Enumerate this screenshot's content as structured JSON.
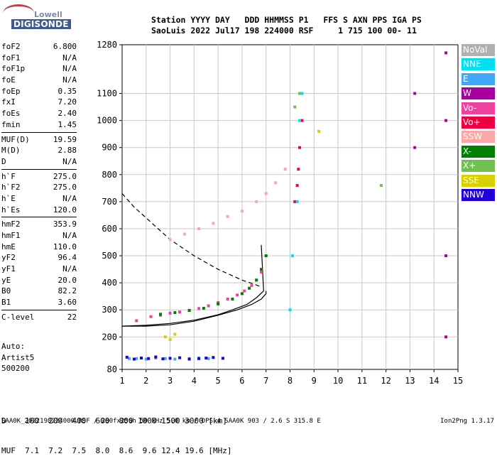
{
  "logo": {
    "line1": "Lowell",
    "line2": "DIGISONDE"
  },
  "header": {
    "line1": "Station YYYY DAY   DDD HHMMSS P1   FFS S AXN PPS IGA PS",
    "line2": "SaoLuis 2022 Jul17 198 224000 RSF     1 715 100 00- 11"
  },
  "params_group1": [
    {
      "name": "foF2",
      "value": "6.800"
    },
    {
      "name": "foF1",
      "value": "N/A"
    },
    {
      "name": "foF1p",
      "value": "N/A"
    },
    {
      "name": "foE",
      "value": "N/A"
    },
    {
      "name": "foEp",
      "value": "0.35"
    },
    {
      "name": "fxI",
      "value": "7.20"
    },
    {
      "name": "foEs",
      "value": "2.40"
    },
    {
      "name": "fmin",
      "value": "1.45"
    }
  ],
  "params_group2": [
    {
      "name": "MUF(D)",
      "value": "19.59"
    },
    {
      "name": "M(D)",
      "value": "2.88"
    },
    {
      "name": "D",
      "value": "N/A"
    }
  ],
  "params_group3": [
    {
      "name": "h`F",
      "value": "275.0"
    },
    {
      "name": "h`F2",
      "value": "275.0"
    },
    {
      "name": "h`E",
      "value": "N/A"
    },
    {
      "name": "h`Es",
      "value": "120.0"
    }
  ],
  "params_group4": [
    {
      "name": "hmF2",
      "value": "353.9"
    },
    {
      "name": "hmF1",
      "value": "N/A"
    },
    {
      "name": "hmE",
      "value": "110.0"
    },
    {
      "name": "yF2",
      "value": "96.4"
    },
    {
      "name": "yF1",
      "value": "N/A"
    },
    {
      "name": "yE",
      "value": "20.0"
    },
    {
      "name": "B0",
      "value": "82.2"
    },
    {
      "name": "B1",
      "value": "3.60"
    }
  ],
  "params_group5": [
    {
      "name": "C-level",
      "value": "22"
    }
  ],
  "auto": {
    "line1": "Auto:",
    "line2": "Artist5",
    "line3": "500200"
  },
  "legend": [
    {
      "label": "NoVal",
      "color": "#b0b0b0"
    },
    {
      "label": "NNE",
      "color": "#00e0f0"
    },
    {
      "label": "E",
      "color": "#40a8f8"
    },
    {
      "label": "W",
      "color": "#a800a0"
    },
    {
      "label": "Vo-",
      "color": "#f040a0"
    },
    {
      "label": "Vo+",
      "color": "#f00040"
    },
    {
      "label": "SSW",
      "color": "#f8a8a8"
    },
    {
      "label": "X-",
      "color": "#008000"
    },
    {
      "label": "X+",
      "color": "#70c050"
    },
    {
      "label": "SSE",
      "color": "#d8d000"
    },
    {
      "label": "NNW",
      "color": "#2000d8"
    }
  ],
  "dmuf": {
    "line1": "D    100  200  400  600  800 1000 1500 3000 [km]",
    "line2": "MUF  7.1  7.2  7.5  8.0  8.6  9.6 12.4 19.6 [MHz]"
  },
  "footer": "SAA0K_2022198224000.RSF / 280fx256h 50 kHz 5.0 km / DPS-4 SAA0K 903 / 2.6 S 315.8 E",
  "version": "Ion2Png 1.3.17",
  "chart_data": {
    "type": "scatter",
    "x_ticks": [
      "1",
      "2",
      "3",
      "4",
      "5",
      "6",
      "7",
      "8",
      "9",
      "10",
      "11",
      "12",
      "13",
      "14",
      "15"
    ],
    "y_ticks": [
      "80",
      "200",
      "300",
      "400",
      "500",
      "600",
      "700",
      "800",
      "900",
      "1000",
      "1100",
      "1280"
    ],
    "xlim": [
      1,
      15
    ],
    "ylim": [
      80,
      1280
    ],
    "grid": true,
    "series": [
      {
        "name": "Vo-",
        "color": "#f040a0",
        "x": [
          1.6,
          2.2,
          2.6,
          3.0,
          3.4,
          3.8,
          4.2,
          4.6,
          5.0,
          5.4,
          5.8,
          6.1,
          6.4,
          6.6,
          6.8
        ],
        "y": [
          260,
          275,
          280,
          288,
          292,
          298,
          305,
          315,
          327,
          340,
          355,
          370,
          390,
          410,
          440
        ]
      },
      {
        "name": "X-",
        "color": "#008000",
        "x": [
          2.6,
          3.2,
          3.8,
          4.4,
          5.0,
          5.6,
          6.0,
          6.3,
          6.6,
          6.8,
          7.0
        ],
        "y": [
          284,
          290,
          298,
          306,
          322,
          340,
          360,
          380,
          410,
          450,
          500
        ]
      },
      {
        "name": "SSW",
        "color": "#f8a8a8",
        "x": [
          3.0,
          3.6,
          4.2,
          4.8,
          5.4,
          6.0,
          6.6,
          7.0,
          7.4,
          7.8
        ],
        "y": [
          560,
          580,
          600,
          620,
          645,
          665,
          700,
          730,
          770,
          820
        ]
      },
      {
        "name": "Vo+",
        "color": "#f00040",
        "x": [
          8.2,
          8.3,
          8.35,
          8.4,
          8.5
        ],
        "y": [
          700,
          760,
          820,
          900,
          1000
        ]
      },
      {
        "name": "E",
        "color": "#40a8f8",
        "x": [
          1.3,
          1.6,
          2.0,
          2.4,
          2.8,
          3.2,
          3.8,
          4.2,
          4.6
        ],
        "y": [
          120,
          120,
          118,
          122,
          120,
          118,
          120,
          122,
          120
        ]
      },
      {
        "name": "NNW",
        "color": "#2000d8",
        "x": [
          1.2,
          1.5,
          1.8,
          2.1,
          2.4,
          2.7,
          3.0,
          3.4,
          3.8,
          4.2,
          4.5,
          4.8,
          5.2
        ],
        "y": [
          125,
          118,
          122,
          120,
          126,
          119,
          121,
          123,
          118,
          120,
          122,
          124,
          121
        ]
      },
      {
        "name": "W",
        "color": "#a800a0",
        "x": [
          13.2,
          13.2,
          14.5,
          14.5,
          14.5,
          14.5
        ],
        "y": [
          1100,
          900,
          1250,
          1000,
          500,
          200
        ]
      },
      {
        "name": "NNE",
        "color": "#00e0f0",
        "x": [
          8.0,
          8.1,
          8.3,
          8.4,
          8.5
        ],
        "y": [
          300,
          500,
          700,
          1000,
          1100
        ]
      },
      {
        "name": "X+",
        "color": "#70c050",
        "x": [
          8.2,
          8.4,
          11.8
        ],
        "y": [
          1050,
          1100,
          760
        ]
      },
      {
        "name": "SSE",
        "color": "#d8d000",
        "x": [
          2.8,
          3.0,
          3.2,
          9.2
        ],
        "y": [
          200,
          190,
          210,
          960
        ]
      }
    ],
    "curves": {
      "solid_a": {
        "x": [
          1.0,
          2.0,
          3.0,
          4.0,
          5.0,
          5.6,
          6.2,
          6.6,
          6.9,
          6.8
        ],
        "y": [
          240,
          243,
          250,
          262,
          282,
          300,
          320,
          345,
          370,
          540
        ]
      },
      "solid_b": {
        "x": [
          1.0,
          2.0,
          3.0,
          4.0,
          5.0,
          5.8,
          6.4,
          6.8,
          7.0,
          7.0
        ],
        "y": [
          240,
          240,
          245,
          258,
          280,
          300,
          320,
          340,
          360,
          370
        ]
      },
      "dashed": {
        "x": [
          1.0,
          1.5,
          2.0,
          2.5,
          3.0,
          3.5,
          4.0,
          4.5,
          5.0,
          5.5,
          6.0,
          6.5,
          6.8
        ],
        "y": [
          730,
          680,
          640,
          600,
          560,
          530,
          500,
          475,
          450,
          430,
          410,
          395,
          385
        ]
      }
    }
  }
}
